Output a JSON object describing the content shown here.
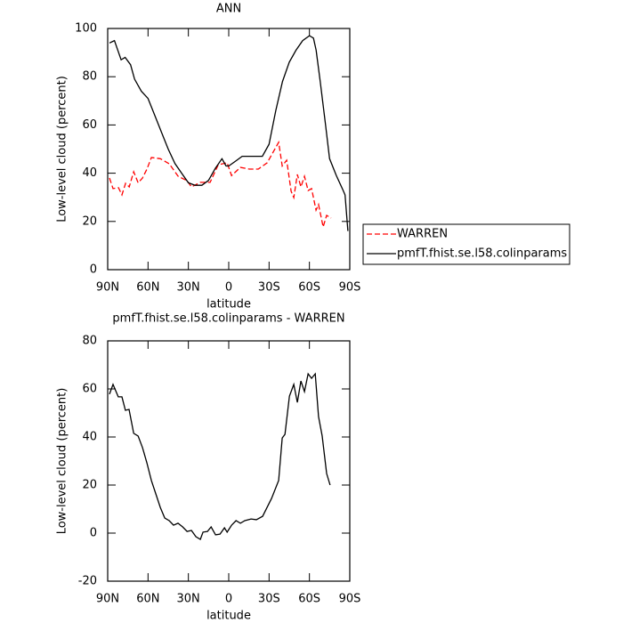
{
  "chart_data": [
    {
      "type": "line",
      "title": "ANN",
      "xlabel": "latitude",
      "ylabel": "Low-level cloud (percent)",
      "xlim": [
        90,
        -90
      ],
      "xticks": [
        {
          "value": 90,
          "label": "90N"
        },
        {
          "value": 60,
          "label": "60N"
        },
        {
          "value": 30,
          "label": "30N"
        },
        0,
        {
          "value": -30,
          "label": "30S"
        },
        {
          "value": -60,
          "label": "60S"
        },
        {
          "value": -90,
          "label": "90S"
        }
      ],
      "ylim": [
        0,
        100
      ],
      "yticks": [
        0,
        20,
        40,
        60,
        80,
        100
      ],
      "legend": "right",
      "series": [
        {
          "name": "WARREN",
          "color": "#ff0000",
          "dash": "dashed",
          "x": [
            88.7,
            86,
            82,
            79.4,
            76.7,
            74,
            70.7,
            67.4,
            64.1,
            60.8,
            57.5,
            50.9,
            44.3,
            37.6,
            31,
            27.7,
            21.1,
            13.8,
            7.8,
            1.2,
            -2.1,
            -8.7,
            -15.4,
            -22,
            -28.6,
            -37.1,
            -39.8,
            -43.1,
            -46.4,
            -48.4,
            -51,
            -53.7,
            -56.3,
            -59,
            -61.6,
            -64.9,
            -66.8,
            -70.2,
            -72.8,
            -76.1
          ],
          "values": [
            38,
            33.6,
            34,
            31,
            35.8,
            34.3,
            40.6,
            36,
            38,
            41.7,
            46.5,
            46,
            43.9,
            38.7,
            36.9,
            34.3,
            36.2,
            36.2,
            43.5,
            44.3,
            39,
            42.4,
            41.7,
            41.7,
            44.3,
            52.8,
            43,
            45.4,
            32.5,
            29.9,
            39.5,
            34.3,
            38.7,
            32.8,
            33.6,
            24.7,
            27,
            17.7,
            22.5,
            21.4
          ]
        },
        {
          "name": "pmfT.fhist.se.l58.colinparams",
          "color": "#000000",
          "dash": "solid",
          "x": [
            88.6,
            85,
            80,
            77,
            73,
            70,
            65,
            60,
            55,
            50,
            45,
            40,
            35,
            30,
            25,
            20,
            15,
            10,
            5,
            2,
            0,
            -5,
            -10,
            -15,
            -20,
            -25,
            -30,
            -35,
            -40,
            -45,
            -50,
            -55,
            -60,
            -63,
            -65,
            -68,
            -72,
            -75,
            -80,
            -85,
            -86.5,
            -88.6
          ],
          "values": [
            94,
            95,
            87,
            88,
            85,
            79,
            74,
            71,
            64,
            57,
            50,
            44,
            40,
            36,
            35,
            35,
            37,
            42,
            46,
            43,
            43,
            45,
            47,
            47,
            47,
            47,
            52,
            66,
            78,
            86,
            91,
            95,
            97,
            96,
            91,
            78,
            60,
            46,
            39,
            33,
            31,
            16
          ]
        }
      ]
    },
    {
      "type": "line",
      "title": "pmfT.fhist.se.l58.colinparams - WARREN",
      "xlabel": "latitude",
      "ylabel": "Low-level cloud (percent)",
      "xlim": [
        90,
        -90
      ],
      "xticks": [
        {
          "value": 90,
          "label": "90N"
        },
        {
          "value": 60,
          "label": "60N"
        },
        {
          "value": 30,
          "label": "30N"
        },
        0,
        {
          "value": -30,
          "label": "30S"
        },
        {
          "value": -60,
          "label": "60S"
        },
        {
          "value": -90,
          "label": "90S"
        }
      ],
      "ylim": [
        -20,
        80
      ],
      "yticks": [
        -20,
        0,
        20,
        40,
        60,
        80
      ],
      "series": [
        {
          "color": "#000000",
          "dash": "solid",
          "x": [
            88.7,
            86,
            82.1,
            79.4,
            76.8,
            74.1,
            70.7,
            67.4,
            64.1,
            60.9,
            57.5,
            54.2,
            50.9,
            47.6,
            44.3,
            41,
            37.7,
            34.3,
            31,
            27.7,
            24.4,
            21.1,
            19.1,
            15.8,
            13.1,
            9.8,
            6.5,
            3.2,
            1.2,
            -2.1,
            -5.4,
            -8.7,
            -12,
            -16.6,
            -20.6,
            -25.2,
            -28.5,
            -31.8,
            -37.1,
            -39.8,
            -41.8,
            -45.1,
            -48.4,
            -51,
            -53.7,
            -56.3,
            -59,
            -61.6,
            -64.3,
            -66.8,
            -69.5,
            -72.8,
            -75.4
          ],
          "values": [
            57.8,
            61.9,
            56.7,
            56.7,
            51.1,
            51.5,
            41.5,
            40.4,
            35.6,
            29.3,
            21.9,
            16.3,
            10.7,
            6.3,
            5.2,
            3.3,
            4.1,
            2.6,
            0.7,
            1.1,
            -1.5,
            -2.6,
            0.4,
            0.7,
            2.6,
            -0.7,
            -0.4,
            2.2,
            0.4,
            3.3,
            5.2,
            4.1,
            5.2,
            5.9,
            5.6,
            7,
            10.7,
            14.4,
            21.9,
            39.6,
            41.1,
            57,
            61.9,
            54.4,
            63.3,
            58.9,
            66.3,
            64.4,
            66.3,
            48.5,
            40.4,
            24.8,
            20
          ]
        }
      ]
    }
  ]
}
